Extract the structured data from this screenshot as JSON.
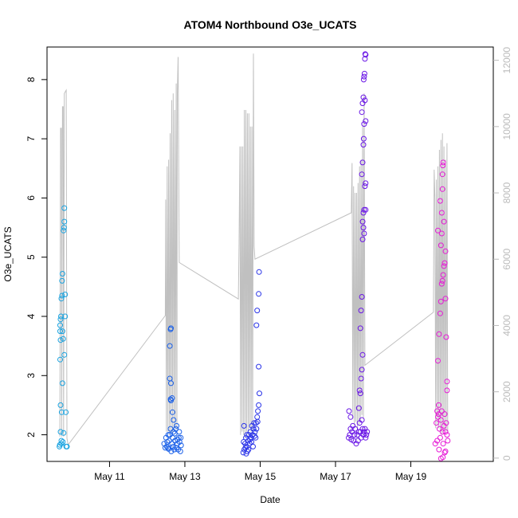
{
  "chart_data": {
    "type": "scatter",
    "title": "ATOM4 Northbound O3e_UCATS",
    "xlabel": "Date",
    "ylabel": "O3e_UCATS",
    "x_ticks": [
      {
        "day": 11,
        "label": "May 11"
      },
      {
        "day": 13,
        "label": "May 13"
      },
      {
        "day": 15,
        "label": "May 15"
      },
      {
        "day": 17,
        "label": "May 17"
      },
      {
        "day": 19,
        "label": "May 19"
      }
    ],
    "xlim": [
      9.34,
      21.19
    ],
    "ylim": [
      1.55,
      8.55
    ],
    "y_ticks": [
      2,
      3,
      4,
      5,
      6,
      7,
      8
    ],
    "y2lim": [
      -100,
      12400
    ],
    "y2_ticks": [
      0,
      2000,
      4000,
      6000,
      8000,
      10000,
      12000
    ],
    "y2_color": "#bbbbbb",
    "altitude_line_color": "#c0c0c0",
    "groups": [
      {
        "color": "#1aa3e0",
        "points": [
          [
            9.67,
            1.8
          ],
          [
            9.68,
            1.83
          ],
          [
            9.7,
            2.05
          ],
          [
            9.7,
            2.5
          ],
          [
            9.69,
            3.27
          ],
          [
            9.7,
            3.6
          ],
          [
            9.69,
            3.85
          ],
          [
            9.7,
            3.95
          ],
          [
            9.71,
            4.0
          ],
          [
            9.72,
            4.3
          ],
          [
            9.74,
            4.35
          ],
          [
            9.75,
            3.75
          ],
          [
            9.77,
            3.62
          ],
          [
            9.8,
            3.35
          ],
          [
            9.75,
            2.87
          ],
          [
            9.73,
            2.38
          ],
          [
            9.78,
            2.03
          ],
          [
            9.72,
            1.9
          ],
          [
            9.74,
            4.6
          ],
          [
            9.75,
            4.72
          ],
          [
            9.78,
            5.45
          ],
          [
            9.79,
            5.5
          ],
          [
            9.8,
            5.6
          ],
          [
            9.8,
            5.83
          ],
          [
            9.82,
            4.37
          ],
          [
            9.84,
            2.38
          ],
          [
            9.85,
            1.8
          ],
          [
            9.87,
            1.8
          ],
          [
            9.82,
            4.0
          ],
          [
            9.72,
            1.85
          ],
          [
            9.76,
            1.88
          ],
          [
            9.69,
            3.75
          ]
        ]
      },
      {
        "color": "#1a60e8",
        "points": [
          [
            12.45,
            1.85
          ],
          [
            12.5,
            1.95
          ],
          [
            12.52,
            1.8
          ],
          [
            12.55,
            1.78
          ],
          [
            12.58,
            1.9
          ],
          [
            12.6,
            2.0
          ],
          [
            12.62,
            2.1
          ],
          [
            12.64,
            1.72
          ],
          [
            12.66,
            1.85
          ],
          [
            12.68,
            1.95
          ],
          [
            12.7,
            2.05
          ],
          [
            12.72,
            1.75
          ],
          [
            12.74,
            1.9
          ],
          [
            12.76,
            2.1
          ],
          [
            12.78,
            2.15
          ],
          [
            12.8,
            1.85
          ],
          [
            12.82,
            1.75
          ],
          [
            12.84,
            1.95
          ],
          [
            12.86,
            1.88
          ],
          [
            12.88,
            1.72
          ],
          [
            12.9,
            1.82
          ],
          [
            12.62,
            2.6
          ],
          [
            12.63,
            2.58
          ],
          [
            12.66,
            2.62
          ],
          [
            12.6,
            2.95
          ],
          [
            12.63,
            2.87
          ],
          [
            12.6,
            3.5
          ],
          [
            12.62,
            3.78
          ],
          [
            12.63,
            3.8
          ],
          [
            12.67,
            2.38
          ],
          [
            12.7,
            2.25
          ],
          [
            12.56,
            2.0
          ],
          [
            12.48,
            1.78
          ],
          [
            12.53,
            1.88
          ],
          [
            12.57,
            1.76
          ],
          [
            12.69,
            1.8
          ],
          [
            12.73,
            2.02
          ],
          [
            12.77,
            1.78
          ],
          [
            12.81,
            1.92
          ],
          [
            12.85,
            2.05
          ],
          [
            12.89,
            1.95
          ]
        ]
      },
      {
        "color": "#2a34e8",
        "points": [
          [
            14.55,
            1.7
          ],
          [
            14.58,
            1.75
          ],
          [
            14.6,
            1.85
          ],
          [
            14.62,
            1.95
          ],
          [
            14.64,
            1.8
          ],
          [
            14.66,
            1.72
          ],
          [
            14.68,
            1.9
          ],
          [
            14.7,
            2.0
          ],
          [
            14.72,
            1.85
          ],
          [
            14.74,
            2.05
          ],
          [
            14.76,
            1.95
          ],
          [
            14.78,
            2.15
          ],
          [
            14.8,
            2.0
          ],
          [
            14.82,
            2.1
          ],
          [
            14.84,
            2.2
          ],
          [
            14.86,
            2.05
          ],
          [
            14.88,
            1.95
          ],
          [
            14.9,
            2.1
          ],
          [
            14.92,
            2.3
          ],
          [
            14.94,
            2.4
          ],
          [
            14.96,
            2.5
          ],
          [
            14.98,
            2.7
          ],
          [
            14.96,
            3.15
          ],
          [
            14.9,
            3.85
          ],
          [
            14.92,
            4.1
          ],
          [
            14.96,
            4.38
          ],
          [
            14.97,
            4.75
          ],
          [
            14.57,
            2.15
          ],
          [
            14.61,
            1.78
          ],
          [
            14.65,
            2.0
          ],
          [
            14.69,
            1.75
          ],
          [
            14.73,
            1.92
          ],
          [
            14.77,
            1.88
          ],
          [
            14.81,
            1.8
          ],
          [
            14.85,
            1.98
          ],
          [
            14.89,
            2.2
          ],
          [
            14.93,
            2.22
          ],
          [
            14.56,
            1.88
          ],
          [
            14.63,
            1.68
          ]
        ]
      },
      {
        "color": "#6a16e6",
        "points": [
          [
            17.35,
            1.95
          ],
          [
            17.38,
            2.0
          ],
          [
            17.4,
            2.1
          ],
          [
            17.42,
            1.92
          ],
          [
            17.44,
            2.05
          ],
          [
            17.46,
            2.15
          ],
          [
            17.48,
            1.9
          ],
          [
            17.5,
            2.0
          ],
          [
            17.52,
            2.1
          ],
          [
            17.55,
            1.85
          ],
          [
            17.58,
            2.0
          ],
          [
            17.6,
            1.9
          ],
          [
            17.62,
            2.05
          ],
          [
            17.64,
            2.2
          ],
          [
            17.66,
            2.05
          ],
          [
            17.68,
            1.95
          ],
          [
            17.7,
            2.25
          ],
          [
            17.72,
            2.1
          ],
          [
            17.74,
            2.0
          ],
          [
            17.76,
            2.05
          ],
          [
            17.78,
            2.1
          ],
          [
            17.8,
            1.95
          ],
          [
            17.82,
            2.0
          ],
          [
            17.84,
            2.05
          ],
          [
            17.36,
            2.4
          ],
          [
            17.4,
            2.3
          ],
          [
            17.62,
            2.45
          ],
          [
            17.64,
            2.75
          ],
          [
            17.66,
            2.7
          ],
          [
            17.68,
            2.95
          ],
          [
            17.7,
            3.1
          ],
          [
            17.72,
            3.35
          ],
          [
            17.66,
            3.8
          ],
          [
            17.68,
            4.1
          ],
          [
            17.7,
            4.33
          ],
          [
            17.72,
            5.3
          ],
          [
            17.74,
            5.5
          ],
          [
            17.72,
            5.6
          ],
          [
            17.74,
            5.75
          ],
          [
            17.76,
            5.8
          ],
          [
            17.78,
            6.2
          ],
          [
            17.8,
            6.25
          ],
          [
            17.7,
            6.4
          ],
          [
            17.72,
            6.6
          ],
          [
            17.74,
            6.9
          ],
          [
            17.75,
            7.0
          ],
          [
            17.76,
            7.25
          ],
          [
            17.7,
            7.45
          ],
          [
            17.72,
            7.6
          ],
          [
            17.74,
            7.7
          ],
          [
            17.75,
            8.0
          ],
          [
            17.76,
            8.05
          ],
          [
            17.77,
            8.1
          ],
          [
            17.78,
            8.35
          ],
          [
            17.79,
            8.43
          ],
          [
            17.8,
            8.42
          ],
          [
            17.8,
            7.3
          ],
          [
            17.78,
            7.65
          ],
          [
            17.76,
            5.4
          ],
          [
            17.8,
            5.8
          ]
        ]
      },
      {
        "color": "#e61ad6",
        "points": [
          [
            19.65,
            1.85
          ],
          [
            19.68,
            2.2
          ],
          [
            19.7,
            2.4
          ],
          [
            19.72,
            2.3
          ],
          [
            19.74,
            2.5
          ],
          [
            19.76,
            2.1
          ],
          [
            19.78,
            1.95
          ],
          [
            19.8,
            2.25
          ],
          [
            19.82,
            2.4
          ],
          [
            19.84,
            2.05
          ],
          [
            19.86,
            1.85
          ],
          [
            19.88,
            2.15
          ],
          [
            19.9,
            2.35
          ],
          [
            19.92,
            2.05
          ],
          [
            19.94,
            2.2
          ],
          [
            19.96,
            2.0
          ],
          [
            19.98,
            1.9
          ],
          [
            19.75,
            1.75
          ],
          [
            19.8,
            1.6
          ],
          [
            19.85,
            1.62
          ],
          [
            19.9,
            1.7
          ],
          [
            19.92,
            1.72
          ],
          [
            19.72,
            3.25
          ],
          [
            19.75,
            3.7
          ],
          [
            19.78,
            4.05
          ],
          [
            19.8,
            4.25
          ],
          [
            19.82,
            4.55
          ],
          [
            19.84,
            4.6
          ],
          [
            19.86,
            4.7
          ],
          [
            19.88,
            4.85
          ],
          [
            19.9,
            4.9
          ],
          [
            19.92,
            5.1
          ],
          [
            19.8,
            5.2
          ],
          [
            19.82,
            5.4
          ],
          [
            19.72,
            5.45
          ],
          [
            19.88,
            5.6
          ],
          [
            19.78,
            5.95
          ],
          [
            19.84,
            6.15
          ],
          [
            19.85,
            6.55
          ],
          [
            19.86,
            6.6
          ],
          [
            19.84,
            6.4
          ],
          [
            19.82,
            5.75
          ],
          [
            19.92,
            4.3
          ],
          [
            19.94,
            3.65
          ],
          [
            19.96,
            2.9
          ],
          [
            19.96,
            2.75
          ],
          [
            19.7,
            1.9
          ],
          [
            19.74,
            2.35
          ]
        ]
      }
    ],
    "altitude_line": [
      [
        9.68,
        650
      ],
      [
        9.7,
        9950
      ],
      [
        9.72,
        9950
      ],
      [
        9.73,
        650
      ],
      [
        9.75,
        10600
      ],
      [
        9.77,
        10600
      ],
      [
        9.78,
        650
      ],
      [
        9.8,
        11000
      ],
      [
        9.85,
        11100
      ],
      [
        9.87,
        600
      ],
      [
        9.9,
        400
      ],
      [
        12.48,
        4300
      ],
      [
        12.49,
        7800
      ],
      [
        12.51,
        800
      ],
      [
        12.53,
        8800
      ],
      [
        12.55,
        800
      ],
      [
        12.57,
        9000
      ],
      [
        12.59,
        700
      ],
      [
        12.61,
        9800
      ],
      [
        12.63,
        750
      ],
      [
        12.65,
        10800
      ],
      [
        12.67,
        700
      ],
      [
        12.69,
        11000
      ],
      [
        12.71,
        800
      ],
      [
        12.73,
        10500
      ],
      [
        12.75,
        900
      ],
      [
        12.77,
        11300
      ],
      [
        12.79,
        800
      ],
      [
        12.8,
        11000
      ],
      [
        12.82,
        12100
      ],
      [
        12.85,
        5900
      ],
      [
        14.42,
        4800
      ],
      [
        14.44,
        6500
      ],
      [
        14.46,
        9400
      ],
      [
        14.48,
        700
      ],
      [
        14.5,
        9400
      ],
      [
        14.52,
        800
      ],
      [
        14.54,
        9400
      ],
      [
        14.56,
        700
      ],
      [
        14.58,
        10500
      ],
      [
        14.6,
        600
      ],
      [
        14.62,
        10500
      ],
      [
        14.64,
        800
      ],
      [
        14.66,
        10400
      ],
      [
        14.68,
        700
      ],
      [
        14.7,
        10400
      ],
      [
        14.72,
        900
      ],
      [
        14.74,
        10000
      ],
      [
        14.76,
        800
      ],
      [
        14.78,
        10000
      ],
      [
        14.8,
        700
      ],
      [
        14.82,
        12200
      ],
      [
        14.84,
        6400
      ],
      [
        14.86,
        6000
      ],
      [
        17.42,
        7400
      ],
      [
        17.44,
        8900
      ],
      [
        17.46,
        1200
      ],
      [
        17.48,
        8200
      ],
      [
        17.5,
        1000
      ],
      [
        17.52,
        8000
      ],
      [
        17.54,
        1100
      ],
      [
        17.56,
        8000
      ],
      [
        17.58,
        900
      ],
      [
        17.6,
        8300
      ],
      [
        17.62,
        1000
      ],
      [
        17.64,
        8800
      ],
      [
        17.66,
        1100
      ],
      [
        17.68,
        9000
      ],
      [
        17.7,
        1300
      ],
      [
        17.72,
        10000
      ],
      [
        17.74,
        1200
      ],
      [
        17.76,
        11000
      ],
      [
        17.78,
        2800
      ],
      [
        19.6,
        4400
      ],
      [
        19.62,
        8700
      ],
      [
        19.64,
        7800
      ],
      [
        19.66,
        900
      ],
      [
        19.68,
        8400
      ],
      [
        19.7,
        1000
      ],
      [
        19.72,
        8800
      ],
      [
        19.74,
        900
      ],
      [
        19.76,
        9300
      ],
      [
        19.78,
        800
      ],
      [
        19.8,
        9600
      ],
      [
        19.82,
        700
      ],
      [
        19.84,
        9800
      ],
      [
        19.86,
        800
      ],
      [
        19.88,
        9400
      ],
      [
        19.9,
        700
      ],
      [
        19.92,
        9000
      ],
      [
        19.94,
        800
      ],
      [
        19.96,
        9500
      ],
      [
        19.98,
        800
      ]
    ]
  }
}
